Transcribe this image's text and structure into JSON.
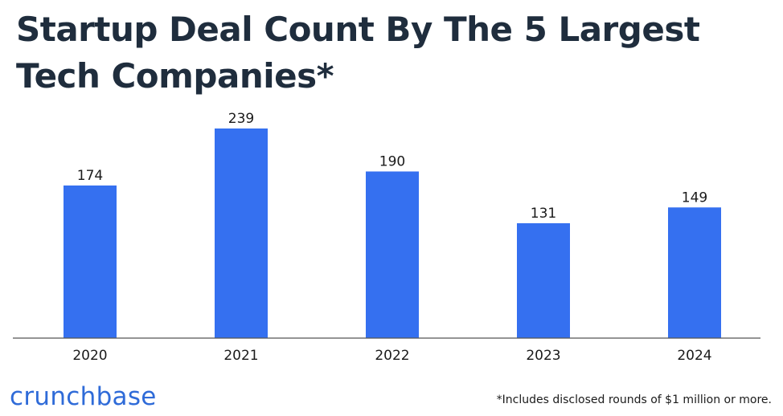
{
  "chart_data": {
    "type": "bar",
    "title": "Startup Deal Count By The 5 Largest Tech Companies*",
    "categories": [
      "2020",
      "2021",
      "2022",
      "2023",
      "2024"
    ],
    "values": [
      174,
      239,
      190,
      131,
      149
    ],
    "data_labels": [
      "174",
      "239",
      "190",
      "131",
      "149"
    ],
    "xlabel": "",
    "ylabel": "",
    "ylim": [
      0,
      239
    ],
    "grid": false,
    "bar_color": "#3570f0"
  },
  "brand": "crunchbase",
  "footnote": "*Includes disclosed rounds of $1 million or more."
}
